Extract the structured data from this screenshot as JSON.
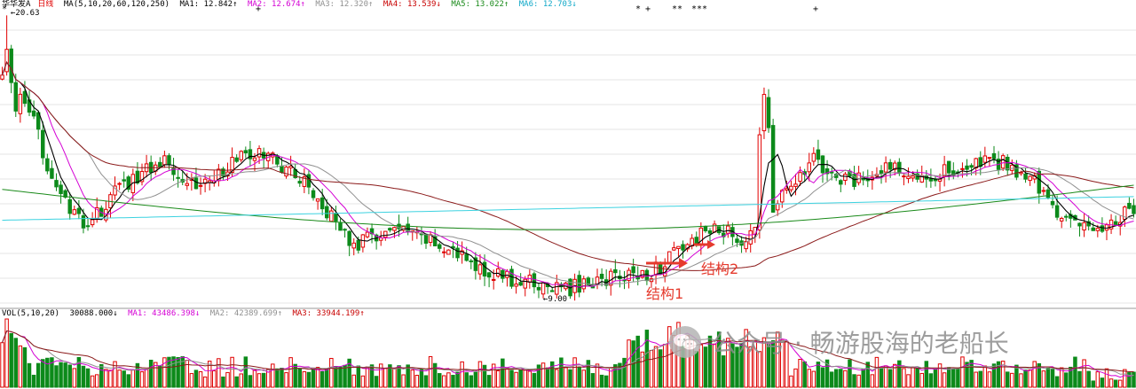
{
  "header": {
    "stock_name": "华华发A",
    "period": "日线",
    "ma_label": "MA(5,10,20,60,120,250)",
    "ma1": "MA1: 12.842↑",
    "ma2": "MA2: 12.674↑",
    "ma3": "MA3: 12.320↑",
    "ma4": "MA4: 13.539↓",
    "ma5": "MA5: 13.022↑",
    "ma6": "MA6: 12.703↓"
  },
  "volume_header": {
    "label": "VOL(5,10,20)",
    "value": "30088.000↓",
    "ma1": "MA1: 43486.398↓",
    "ma2": "MA2: 42389.699↑",
    "ma3": "MA3: 33944.199↑"
  },
  "annotations": {
    "structure1": "结构1",
    "structure2": "结构2",
    "low_label": "←9.00",
    "high_label": "←20.63"
  },
  "watermark": {
    "text": "公众号 · 畅游股海的老船长"
  },
  "colors": {
    "up": "#e00000",
    "down": "#0c8a1a",
    "ma1": "#000000",
    "ma2": "#d400d4",
    "ma3": "#909090",
    "ma4": "#8b1a1a",
    "ma5": "#1a8a1a",
    "ma6": "#3cd2e0",
    "arrow": "#e53a2d"
  },
  "chart_data": {
    "type": "candlestick",
    "y_range": [
      9.0,
      20.63
    ],
    "low_marker": 9.0,
    "high_marker": 20.63,
    "ohlc_closes_approx": [
      18.0,
      17.2,
      16.0,
      14.0,
      12.5,
      11.8,
      12.3,
      13.2,
      13.7,
      14.2,
      14.6,
      14.0,
      13.5,
      13.8,
      14.3,
      14.7,
      14.8,
      14.5,
      14.0,
      13.4,
      12.5,
      11.5,
      11.0,
      11.3,
      11.6,
      11.4,
      11.2,
      11.0,
      10.6,
      10.2,
      9.9,
      9.6,
      9.4,
      9.3,
      9.2,
      9.1,
      9.3,
      9.5,
      9.6,
      9.7,
      9.8,
      10.2,
      10.8,
      11.3,
      11.6,
      11.4,
      11.2,
      12.1,
      12.7,
      13.6,
      14.6,
      14.0,
      13.6,
      13.7,
      13.9,
      14.3,
      14.1,
      13.9,
      14.0,
      14.2,
      14.3,
      14.4,
      14.4,
      14.0,
      13.5,
      12.6,
      11.9,
      11.6,
      11.8,
      12.2,
      12.5
    ],
    "moving_averages": [
      "MA1",
      "MA2",
      "MA3",
      "MA4",
      "MA5",
      "MA6"
    ],
    "volume_ma": [
      "MA1",
      "MA2",
      "MA3"
    ]
  }
}
